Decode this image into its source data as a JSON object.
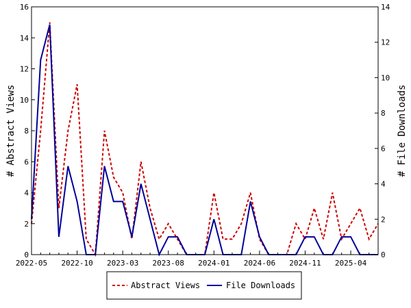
{
  "chart_data": {
    "type": "line",
    "x_dates": [
      "2022-05",
      "2022-06",
      "2022-07",
      "2022-08",
      "2022-09",
      "2022-10",
      "2022-11",
      "2022-12",
      "2023-01",
      "2023-02",
      "2023-03",
      "2023-04",
      "2023-05",
      "2023-06",
      "2023-07",
      "2023-08",
      "2023-09",
      "2023-10",
      "2023-11",
      "2023-12",
      "2024-01",
      "2024-02",
      "2024-03",
      "2024-04",
      "2024-05",
      "2024-06",
      "2024-07",
      "2024-08",
      "2024-09",
      "2024-10",
      "2024-11",
      "2024-12",
      "2025-01",
      "2025-02",
      "2025-03",
      "2025-04",
      "2025-05",
      "2025-06",
      "2025-07"
    ],
    "x_tick_labels": [
      "2022-05",
      "2022-10",
      "2023-03",
      "2023-08",
      "2024-01",
      "2024-06",
      "2024-11",
      "2025-04"
    ],
    "ylabel_left": "# Abstract Views",
    "ylabel_right": "# File Downloads",
    "ylim_left": [
      0,
      16
    ],
    "ylim_right": [
      0,
      14
    ],
    "yticks_left": [
      0,
      2,
      4,
      6,
      8,
      10,
      12,
      14,
      16
    ],
    "yticks_right": [
      0,
      2,
      4,
      6,
      8,
      10,
      12,
      14
    ],
    "series": [
      {
        "name": "Abstract Views",
        "axis": "left",
        "color": "#cc0000",
        "style": "dashed",
        "values": [
          2,
          8,
          15,
          3,
          8,
          11,
          1,
          0,
          8,
          5,
          4,
          1,
          6,
          3,
          1,
          2,
          1,
          0,
          0,
          0,
          4,
          1,
          1,
          2,
          4,
          1,
          0,
          0,
          0,
          2,
          1,
          3,
          1,
          4,
          1,
          2,
          3,
          1,
          2
        ]
      },
      {
        "name": "File Downloads",
        "axis": "right",
        "color": "#000099",
        "style": "solid",
        "values": [
          2,
          11,
          13,
          1,
          5,
          3,
          0,
          0,
          5,
          3,
          3,
          1,
          4,
          2,
          0,
          1,
          1,
          0,
          0,
          0,
          2,
          0,
          0,
          0,
          3,
          1,
          0,
          0,
          0,
          0,
          1,
          1,
          0,
          0,
          1,
          1,
          0,
          0,
          0
        ]
      }
    ],
    "legend": {
      "placement": "bottom"
    }
  }
}
